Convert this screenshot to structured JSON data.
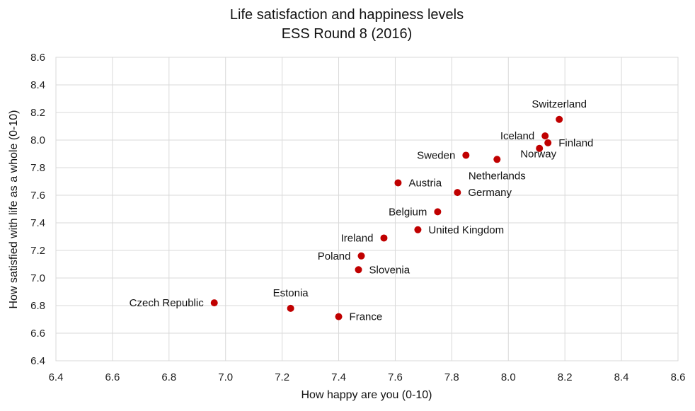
{
  "chart_data": {
    "type": "scatter",
    "title": "Life satisfaction and happiness levels",
    "subtitle": "ESS Round 8 (2016)",
    "xlabel": "How happy are you (0-10)",
    "ylabel": "How satisfied with life as a whole (0-10)",
    "xlim": [
      6.4,
      8.6
    ],
    "ylim": [
      6.4,
      8.6
    ],
    "xticks": [
      "6.4",
      "6.6",
      "6.8",
      "7.0",
      "7.2",
      "7.4",
      "7.6",
      "7.8",
      "8.0",
      "8.2",
      "8.4",
      "8.6"
    ],
    "yticks": [
      "6.4",
      "6.6",
      "6.8",
      "7.0",
      "7.2",
      "7.4",
      "7.6",
      "7.8",
      "8.0",
      "8.2",
      "8.4",
      "8.6"
    ],
    "grid": true,
    "marker_color": "#c00000",
    "points": [
      {
        "label": "Switzerland",
        "x": 8.18,
        "y": 8.15,
        "label_pos": "above"
      },
      {
        "label": "Iceland",
        "x": 8.13,
        "y": 8.03,
        "label_pos": "left"
      },
      {
        "label": "Finland",
        "x": 8.14,
        "y": 7.98,
        "label_pos": "right"
      },
      {
        "label": "Norway",
        "x": 8.11,
        "y": 7.94,
        "label_pos": "below-left"
      },
      {
        "label": "Sweden",
        "x": 7.85,
        "y": 7.89,
        "label_pos": "left"
      },
      {
        "label": "Netherlands",
        "x": 7.96,
        "y": 7.86,
        "label_pos": "below-center"
      },
      {
        "label": "Austria",
        "x": 7.61,
        "y": 7.69,
        "label_pos": "right"
      },
      {
        "label": "Germany",
        "x": 7.82,
        "y": 7.62,
        "label_pos": "right"
      },
      {
        "label": "Belgium",
        "x": 7.75,
        "y": 7.48,
        "label_pos": "left"
      },
      {
        "label": "United Kingdom",
        "x": 7.68,
        "y": 7.35,
        "label_pos": "right"
      },
      {
        "label": "Ireland",
        "x": 7.56,
        "y": 7.29,
        "label_pos": "left"
      },
      {
        "label": "Poland",
        "x": 7.48,
        "y": 7.16,
        "label_pos": "left"
      },
      {
        "label": "Slovenia",
        "x": 7.47,
        "y": 7.06,
        "label_pos": "right"
      },
      {
        "label": "Czech Republic",
        "x": 6.96,
        "y": 6.82,
        "label_pos": "left"
      },
      {
        "label": "Estonia",
        "x": 7.23,
        "y": 6.78,
        "label_pos": "above"
      },
      {
        "label": "France",
        "x": 7.4,
        "y": 6.72,
        "label_pos": "right"
      }
    ]
  }
}
